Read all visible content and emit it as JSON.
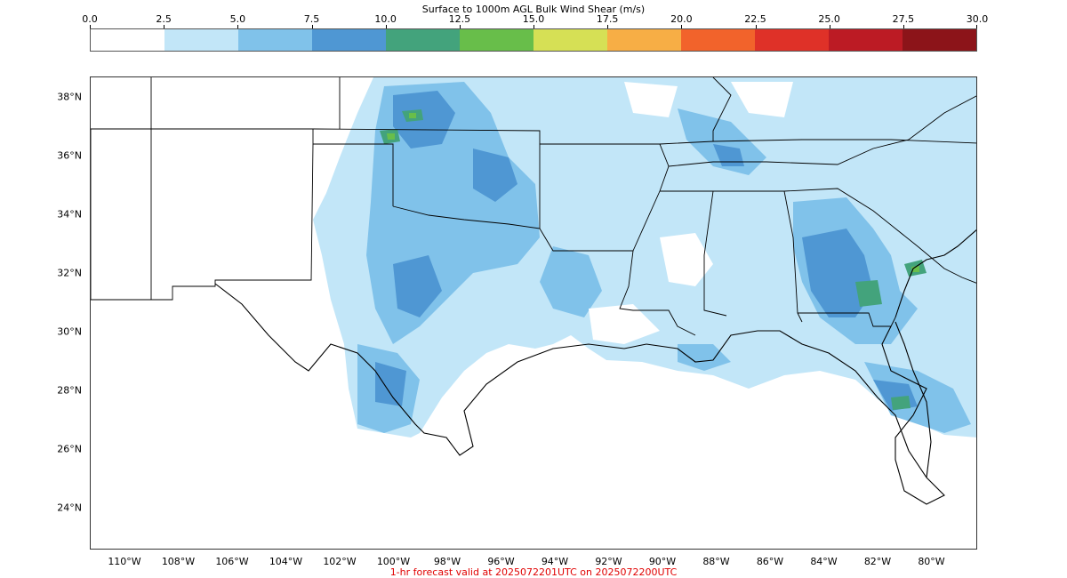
{
  "colorbar": {
    "title": "Surface to 1000m AGL Bulk Wind Shear (m/s)",
    "ticks": [
      "0.0",
      "2.5",
      "5.0",
      "7.5",
      "10.0",
      "12.5",
      "15.0",
      "17.5",
      "20.0",
      "22.5",
      "25.0",
      "27.5",
      "30.0"
    ],
    "colors": [
      "#ffffff",
      "#c2e6f8",
      "#80c2ea",
      "#4f97d3",
      "#43a37c",
      "#68be4a",
      "#d6e055",
      "#f7ae45",
      "#f2632b",
      "#df3128",
      "#bc1b24",
      "#8c1419"
    ]
  },
  "axes": {
    "lat_labels": [
      "38°N",
      "36°N",
      "34°N",
      "32°N",
      "30°N",
      "28°N",
      "26°N",
      "24°N"
    ],
    "lon_labels": [
      "110°W",
      "108°W",
      "106°W",
      "104°W",
      "102°W",
      "100°W",
      "98°W",
      "96°W",
      "94°W",
      "92°W",
      "90°W",
      "88°W",
      "86°W",
      "84°W",
      "82°W",
      "80°W"
    ]
  },
  "footer": "1-hr forecast valid at 2025072201UTC on 2025072200UTC"
}
